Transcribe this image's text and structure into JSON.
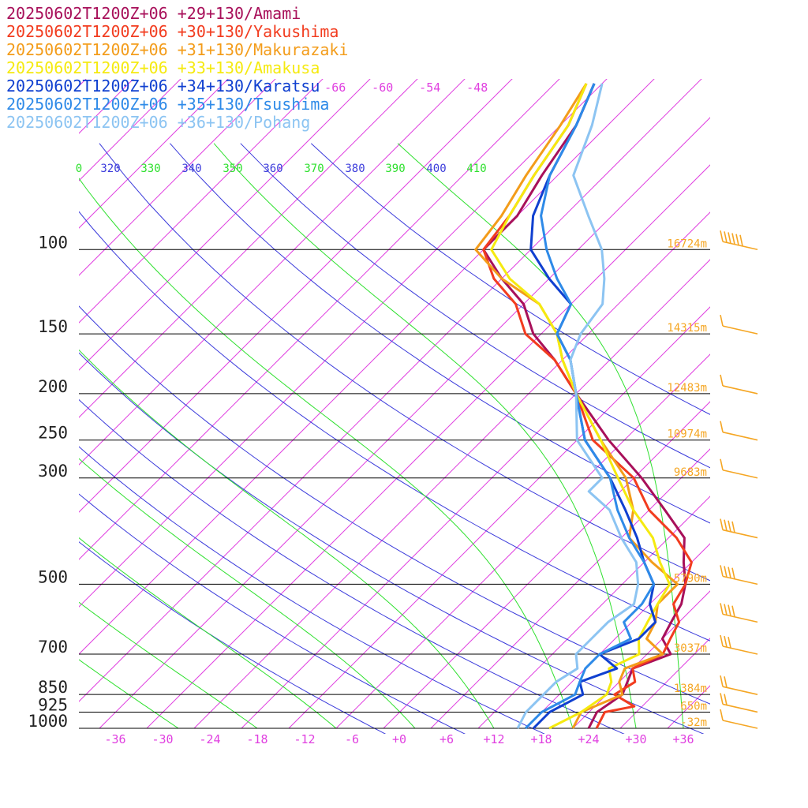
{
  "chart_data": {
    "type": "line",
    "title": "",
    "xlabel": "",
    "ylabel": "",
    "xlim": [
      -40,
      40
    ],
    "pressure_levels": [
      100,
      150,
      200,
      250,
      300,
      500,
      700,
      850,
      925,
      1000
    ],
    "pressure_labels": [
      "100",
      "150",
      "200",
      "250",
      "300",
      "500",
      "700",
      "850",
      "925",
      "1000"
    ],
    "temperature_ticks": [
      -36,
      -30,
      -24,
      -18,
      -12,
      -6,
      0,
      6,
      12,
      18,
      24,
      30,
      36
    ],
    "temperature_tick_labels": [
      "-36",
      "-30",
      "-24",
      "-18",
      "-12",
      "-6",
      "+0",
      "+6",
      "+12",
      "+18",
      "+24",
      "+30",
      "+36"
    ],
    "upper_isotherm_labels": [
      "-66",
      "-60",
      "-54",
      "-48"
    ],
    "theta_labels": [
      "0",
      "320",
      "330",
      "340",
      "350",
      "360",
      "370",
      "380",
      "390",
      "400",
      "410"
    ],
    "height_labels": [
      {
        "p": 100,
        "text": "16724m"
      },
      {
        "p": 150,
        "text": "14315m"
      },
      {
        "p": 200,
        "text": "12483m"
      },
      {
        "p": 250,
        "text": "10974m"
      },
      {
        "p": 300,
        "text": "9683m"
      },
      {
        "p": 500,
        "text": "5790m"
      },
      {
        "p": 700,
        "text": "3037m"
      },
      {
        "p": 850,
        "text": "1384m"
      },
      {
        "p": 925,
        "text": "650m"
      },
      {
        "p": 1000,
        "text": "-32m"
      }
    ],
    "series": [
      {
        "name": "20250602T1200Z+06 +29+130/Amami",
        "color": "#a8105a",
        "points": [
          [
            1000,
            24
          ],
          [
            925,
            23
          ],
          [
            850,
            24
          ],
          [
            750,
            22
          ],
          [
            700,
            25
          ],
          [
            650,
            22
          ],
          [
            600,
            21
          ],
          [
            550,
            20
          ],
          [
            500,
            18
          ],
          [
            450,
            15
          ],
          [
            400,
            12
          ],
          [
            350,
            6
          ],
          [
            300,
            -1
          ],
          [
            250,
            -10
          ],
          [
            200,
            -20
          ],
          [
            170,
            -27
          ],
          [
            150,
            -33
          ],
          [
            130,
            -38
          ],
          [
            115,
            -44
          ],
          [
            100,
            -50
          ],
          [
            85,
            -50
          ],
          [
            70,
            -52
          ],
          [
            55,
            -54
          ],
          [
            45,
            -57
          ]
        ]
      },
      {
        "name": "20250602T1200Z+06 +30+130/Yakushima",
        "color": "#f23c1f",
        "points": [
          [
            1000,
            25
          ],
          [
            925,
            24
          ],
          [
            900,
            27
          ],
          [
            850,
            23
          ],
          [
            800,
            24
          ],
          [
            750,
            22
          ],
          [
            700,
            24
          ],
          [
            650,
            23
          ],
          [
            600,
            22
          ],
          [
            550,
            19
          ],
          [
            500,
            18
          ],
          [
            450,
            16
          ],
          [
            400,
            11
          ],
          [
            350,
            4
          ],
          [
            300,
            -2
          ],
          [
            250,
            -12
          ],
          [
            200,
            -20
          ],
          [
            170,
            -27
          ],
          [
            150,
            -34
          ],
          [
            130,
            -39
          ],
          [
            115,
            -45
          ],
          [
            100,
            -50
          ],
          [
            85,
            -51
          ],
          [
            70,
            -53
          ],
          [
            55,
            -55
          ],
          [
            45,
            -58
          ]
        ]
      },
      {
        "name": "20250602T1200Z+06 +31+130/Makurazaki",
        "color": "#f39c1a",
        "points": [
          [
            1000,
            22
          ],
          [
            925,
            21
          ],
          [
            850,
            24
          ],
          [
            800,
            22
          ],
          [
            750,
            21
          ],
          [
            700,
            24
          ],
          [
            650,
            20
          ],
          [
            600,
            19
          ],
          [
            550,
            17
          ],
          [
            500,
            17
          ],
          [
            450,
            11
          ],
          [
            400,
            5
          ],
          [
            350,
            2
          ],
          [
            300,
            -3
          ],
          [
            250,
            -11
          ],
          [
            200,
            -20
          ],
          [
            170,
            -26
          ],
          [
            150,
            -30
          ],
          [
            130,
            -36
          ],
          [
            115,
            -44
          ],
          [
            100,
            -51
          ],
          [
            85,
            -52
          ],
          [
            70,
            -54
          ],
          [
            55,
            -56
          ],
          [
            45,
            -58
          ]
        ]
      },
      {
        "name": "20250602T1200Z+06 +33+130/Amakusa",
        "color": "#f5ea10",
        "points": [
          [
            1000,
            19
          ],
          [
            925,
            21
          ],
          [
            850,
            22
          ],
          [
            800,
            21
          ],
          [
            750,
            19
          ],
          [
            700,
            21
          ],
          [
            650,
            19
          ],
          [
            600,
            18
          ],
          [
            550,
            17
          ],
          [
            500,
            16
          ],
          [
            450,
            12
          ],
          [
            400,
            8
          ],
          [
            350,
            2
          ],
          [
            300,
            -4
          ],
          [
            250,
            -11
          ],
          [
            200,
            -20
          ],
          [
            170,
            -26
          ],
          [
            150,
            -30
          ],
          [
            130,
            -36
          ],
          [
            115,
            -43
          ],
          [
            100,
            -49
          ],
          [
            85,
            -51
          ],
          [
            70,
            -53
          ],
          [
            55,
            -55
          ],
          [
            45,
            -58
          ]
        ]
      },
      {
        "name": "20250602T1200Z+06 +34+130/Karatsu",
        "color": "#1040d0",
        "points": [
          [
            1000,
            17
          ],
          [
            925,
            17
          ],
          [
            850,
            19
          ],
          [
            800,
            17
          ],
          [
            750,
            20
          ],
          [
            700,
            16
          ],
          [
            650,
            19
          ],
          [
            600,
            19
          ],
          [
            550,
            16
          ],
          [
            500,
            14
          ],
          [
            450,
            10
          ],
          [
            400,
            6
          ],
          [
            350,
            1
          ],
          [
            300,
            -5
          ],
          [
            250,
            -13
          ],
          [
            200,
            -20
          ],
          [
            170,
            -25
          ],
          [
            150,
            -30
          ],
          [
            130,
            -32
          ],
          [
            115,
            -38
          ],
          [
            100,
            -44
          ],
          [
            85,
            -48
          ],
          [
            70,
            -51
          ],
          [
            55,
            -54
          ],
          [
            45,
            -57
          ]
        ]
      },
      {
        "name": "20250602T1200Z+06 +35+130/Tsushima",
        "color": "#2e8ae8",
        "points": [
          [
            1000,
            16
          ],
          [
            925,
            16
          ],
          [
            850,
            18
          ],
          [
            800,
            17
          ],
          [
            750,
            16
          ],
          [
            700,
            16
          ],
          [
            650,
            18
          ],
          [
            600,
            15
          ],
          [
            550,
            15
          ],
          [
            500,
            14
          ],
          [
            450,
            10
          ],
          [
            400,
            5
          ],
          [
            350,
            0
          ],
          [
            300,
            -5
          ],
          [
            250,
            -13
          ],
          [
            200,
            -20
          ],
          [
            170,
            -25
          ],
          [
            150,
            -30
          ],
          [
            130,
            -32
          ],
          [
            115,
            -37
          ],
          [
            100,
            -42
          ],
          [
            85,
            -47
          ],
          [
            70,
            -51
          ],
          [
            55,
            -54
          ],
          [
            45,
            -57
          ]
        ]
      },
      {
        "name": "20250602T1200Z+06 +36+130/Pohang",
        "color": "#8cc4f2",
        "points": [
          [
            1000,
            15
          ],
          [
            925,
            14
          ],
          [
            850,
            14
          ],
          [
            800,
            14
          ],
          [
            750,
            15
          ],
          [
            700,
            13
          ],
          [
            650,
            13
          ],
          [
            600,
            13
          ],
          [
            550,
            14
          ],
          [
            500,
            12
          ],
          [
            450,
            9
          ],
          [
            400,
            4
          ],
          [
            350,
            -1
          ],
          [
            320,
            -6
          ],
          [
            300,
            -6
          ],
          [
            250,
            -14
          ],
          [
            200,
            -20
          ],
          [
            170,
            -25
          ],
          [
            150,
            -27
          ],
          [
            130,
            -28
          ],
          [
            115,
            -31
          ],
          [
            100,
            -35
          ],
          [
            85,
            -41
          ],
          [
            70,
            -48
          ],
          [
            55,
            -52
          ],
          [
            45,
            -56
          ]
        ]
      }
    ],
    "wind_barbs": [
      {
        "p": 100,
        "speed": 60
      },
      {
        "p": 150,
        "speed": 10
      },
      {
        "p": 200,
        "speed": 10
      },
      {
        "p": 250,
        "speed": 10
      },
      {
        "p": 300,
        "speed": 10
      },
      {
        "p": 400,
        "speed": 40
      },
      {
        "p": 500,
        "speed": 40
      },
      {
        "p": 600,
        "speed": 40
      },
      {
        "p": 700,
        "speed": 30
      },
      {
        "p": 850,
        "speed": 20
      },
      {
        "p": 925,
        "speed": 20
      },
      {
        "p": 1000,
        "speed": 5
      }
    ],
    "colors": {
      "isotherm": "#e040e0",
      "dry_adiabat": "#3b3bdb",
      "moist_adiabat": "#2ee02e",
      "barb": "#f5a623",
      "height_label": "#f5a623",
      "grid": "#000000"
    }
  }
}
